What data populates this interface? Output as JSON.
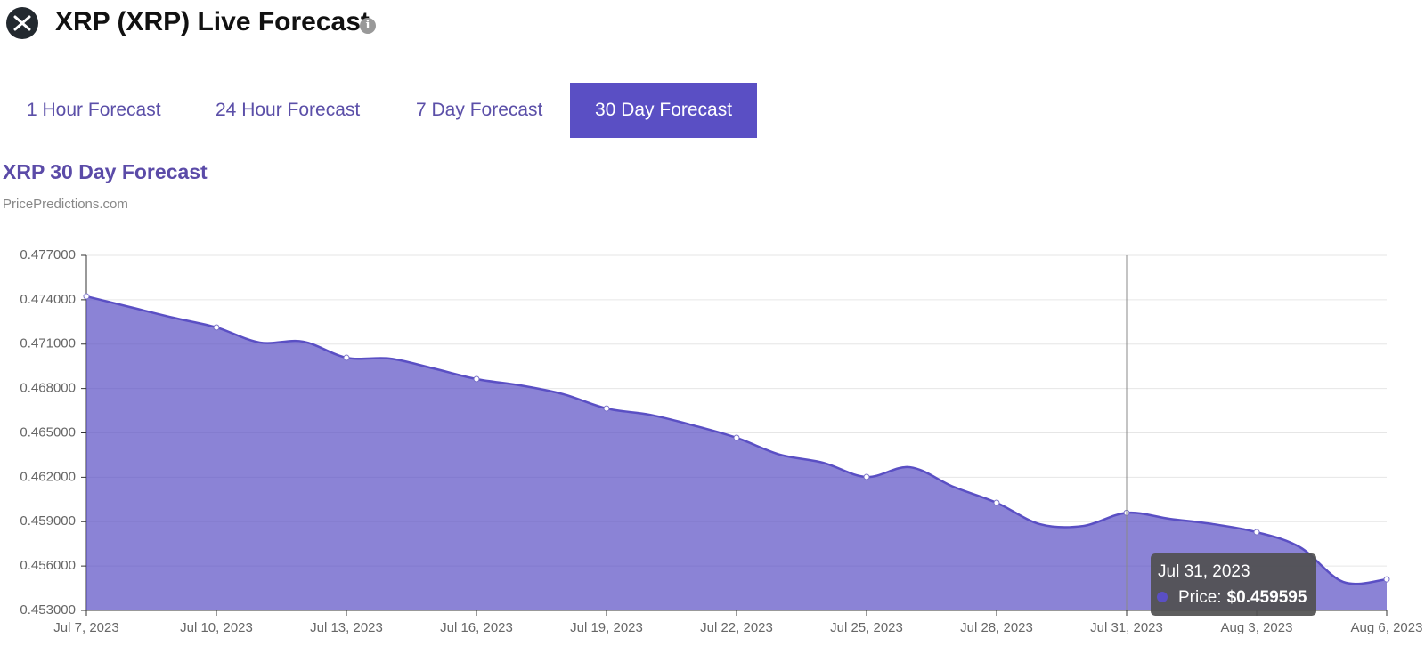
{
  "header": {
    "title": "XRP (XRP) Live Forecast"
  },
  "tabs": [
    {
      "label": "1 Hour Forecast",
      "active": false
    },
    {
      "label": "24 Hour Forecast",
      "active": false
    },
    {
      "label": "7 Day Forecast",
      "active": false
    },
    {
      "label": "30 Day Forecast",
      "active": true
    }
  ],
  "chart_data": {
    "type": "area",
    "title": "XRP 30 Day Forecast",
    "subtitle": "PricePredictions.com",
    "categories": [
      "Jul 7, 2023",
      null,
      null,
      "Jul 10, 2023",
      null,
      null,
      "Jul 13, 2023",
      null,
      null,
      "Jul 16, 2023",
      null,
      null,
      "Jul 19, 2023",
      null,
      null,
      "Jul 22, 2023",
      null,
      null,
      "Jul 25, 2023",
      null,
      null,
      "Jul 28, 2023",
      null,
      null,
      "Jul 31, 2023",
      null,
      null,
      "Aug 3, 2023",
      null,
      null,
      "Aug 6, 2023"
    ],
    "series": [
      {
        "name": "Price",
        "color": "#5a4fc4",
        "values": [
          0.47423,
          0.47351,
          0.47279,
          0.47213,
          0.47111,
          0.47117,
          0.47008,
          0.47002,
          0.46936,
          0.46864,
          0.46822,
          0.46762,
          0.46665,
          0.46623,
          0.46551,
          0.46467,
          0.46353,
          0.46298,
          0.46202,
          0.46268,
          0.46136,
          0.46028,
          0.45883,
          0.45871,
          0.459595,
          0.45919,
          0.45883,
          0.45829,
          0.45727,
          0.45492,
          0.4551
        ],
        "value_labels": [
          null,
          null,
          null,
          null,
          null,
          null,
          null,
          null,
          null,
          null,
          null,
          null,
          null,
          null,
          null,
          null,
          null,
          null,
          null,
          null,
          null,
          null,
          null,
          null,
          "$0.459595",
          null,
          null,
          null,
          null,
          null,
          null
        ]
      }
    ],
    "tooltip_label": "Price:",
    "ylim": [
      0.453,
      0.477
    ],
    "yticks": [
      {
        "value": 0.453,
        "label": "0.453000"
      },
      {
        "value": 0.456,
        "label": "0.456000"
      },
      {
        "value": 0.459,
        "label": "0.459000"
      },
      {
        "value": 0.462,
        "label": "0.462000"
      },
      {
        "value": 0.465,
        "label": "0.465000"
      },
      {
        "value": 0.468,
        "label": "0.468000"
      },
      {
        "value": 0.471,
        "label": "0.471000"
      },
      {
        "value": 0.474,
        "label": "0.474000"
      },
      {
        "value": 0.477,
        "label": "0.477000"
      }
    ],
    "grid": true
  }
}
